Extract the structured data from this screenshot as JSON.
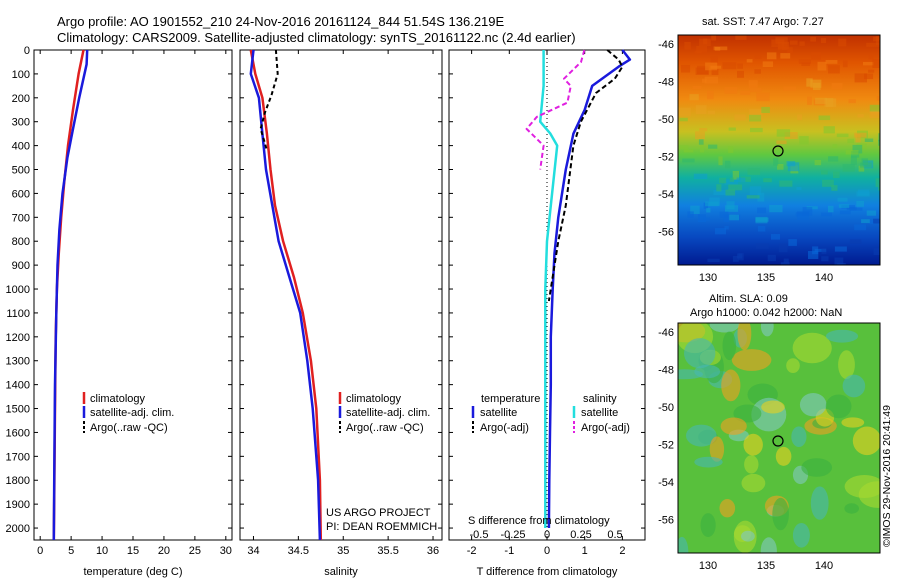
{
  "header": {
    "line1": "Argo profile: AO 1901552_210 24-Nov-2016 20161124_844 51.54S 136.219E",
    "line2": "Climatology: CARS2009. Satellite-adjusted climatology: synTS_20161122.nc (2.4d earlier)"
  },
  "colors": {
    "climatology": "#e02020",
    "satellite": "#1a1adc",
    "argo": "#000000",
    "salinity_satellite": "#22dede",
    "salinity_argo": "#e020e0"
  },
  "chart_data": [
    {
      "type": "line",
      "panel": "temperature",
      "xlabel": "temperature (deg C)",
      "ylim": [
        2050,
        0
      ],
      "xlim": [
        -1,
        31
      ],
      "xticks": [
        "0",
        "5",
        "10",
        "15",
        "20",
        "25",
        "30"
      ],
      "yticks": [
        "0",
        "100",
        "200",
        "300",
        "400",
        "500",
        "600",
        "700",
        "800",
        "900",
        "1000",
        "1100",
        "1200",
        "1300",
        "1400",
        "1500",
        "1600",
        "1700",
        "1800",
        "1900",
        "2000"
      ],
      "legend": [
        "climatology",
        "satellite-adj. clim.",
        "Argo(..raw -QC)"
      ],
      "series": [
        {
          "name": "climatology",
          "x": [
            7.0,
            6.2,
            5.3,
            4.5,
            3.9,
            3.4,
            3.0,
            2.7,
            2.5,
            2.4,
            2.3,
            2.2
          ],
          "y": [
            0,
            100,
            250,
            400,
            550,
            700,
            850,
            1000,
            1200,
            1500,
            1800,
            2050
          ]
        },
        {
          "name": "satellite-adj. clim.",
          "x": [
            7.6,
            7.5,
            6.3,
            5.3,
            4.4,
            3.6,
            3.1,
            2.8,
            2.6,
            2.4,
            2.3,
            2.2
          ],
          "y": [
            0,
            60,
            200,
            330,
            450,
            600,
            750,
            900,
            1100,
            1400,
            1700,
            2050
          ]
        }
      ]
    },
    {
      "type": "line",
      "panel": "salinity",
      "xlabel": "salinity",
      "ylim": [
        2050,
        0
      ],
      "xlim": [
        33.85,
        36.1
      ],
      "xticks": [
        "34",
        "34.5",
        "35",
        "35.5",
        "36"
      ],
      "legend": [
        "climatology",
        "satellite-adj. clim.",
        "Argo(..raw -QC)"
      ],
      "annotation": [
        "US ARGO PROJECT",
        "PI: DEAN ROEMMICH"
      ],
      "series": [
        {
          "name": "climatology",
          "x": [
            33.97,
            34.02,
            34.1,
            34.15,
            34.19,
            34.24,
            34.33,
            34.45,
            34.55,
            34.64,
            34.7,
            34.74,
            34.75
          ],
          "y": [
            0,
            100,
            200,
            350,
            500,
            650,
            800,
            950,
            1100,
            1300,
            1500,
            1800,
            2050
          ]
        },
        {
          "name": "satellite-adj. clim.",
          "x": [
            34.0,
            33.97,
            34.06,
            34.1,
            34.14,
            34.21,
            34.28,
            34.4,
            34.52,
            34.6,
            34.66,
            34.72,
            34.74
          ],
          "y": [
            0,
            100,
            200,
            350,
            500,
            650,
            800,
            950,
            1100,
            1300,
            1500,
            1800,
            2050
          ]
        },
        {
          "name": "Argo(..raw -QC)",
          "x": [
            34.25,
            34.27,
            34.2,
            34.13,
            34.08,
            34.12,
            34.15
          ],
          "y": [
            0,
            100,
            190,
            260,
            330,
            380,
            420
          ]
        }
      ]
    },
    {
      "type": "line",
      "panel": "difference",
      "xlabel": "T difference from climatology",
      "xlabel_top": "S difference from climatology",
      "ylim": [
        2050,
        0
      ],
      "xlim": [
        -2.6,
        2.6
      ],
      "xticks": [
        "-2",
        "-1",
        "0",
        "1",
        "2"
      ],
      "xticks_top": [
        "-0.5",
        "-0.25",
        "0",
        "0.25",
        "0.5"
      ],
      "legend_titles": [
        "temperature",
        "salinity"
      ],
      "legend": [
        "satellite",
        "Argo(-adj)",
        "satellite",
        "Argo(-adj)"
      ],
      "series": [
        {
          "name": "temperature satellite",
          "x": [
            2.0,
            2.2,
            1.9,
            1.2,
            1.0,
            0.7,
            0.5,
            0.3,
            0.2,
            0.15,
            0.1,
            0.1,
            0.08,
            0.06,
            0.05
          ],
          "y": [
            0,
            40,
            70,
            150,
            250,
            350,
            500,
            700,
            850,
            1000,
            1200,
            1400,
            1600,
            1800,
            2000
          ]
        },
        {
          "name": "temperature Argo(-adj)",
          "x": [
            1.6,
            1.9,
            2.0,
            1.8,
            1.3,
            0.9,
            0.7,
            0.5,
            0.3,
            0.05
          ],
          "y": [
            0,
            40,
            70,
            120,
            180,
            300,
            400,
            650,
            800,
            1050
          ]
        },
        {
          "name": "salinity satellite",
          "x": [
            -0.1,
            -0.1,
            -0.1,
            -0.2,
            0.1,
            0.3,
            0.15,
            0.0,
            -0.05,
            -0.05,
            -0.05,
            -0.05
          ],
          "y": [
            0,
            50,
            150,
            300,
            350,
            400,
            600,
            800,
            1000,
            1300,
            1600,
            2000
          ]
        },
        {
          "name": "salinity Argo(-adj)",
          "x": [
            1.1,
            1.0,
            0.5,
            0.7,
            0.6,
            -0.3,
            -0.6,
            -0.1,
            -0.2
          ],
          "y": [
            0,
            50,
            120,
            150,
            220,
            280,
            330,
            400,
            500
          ]
        }
      ]
    },
    {
      "type": "heatmap",
      "panel": "sst_map",
      "title": "sat. SST: 7.47 Argo: 7.27",
      "xticks": [
        "130",
        "135",
        "140"
      ],
      "yticks": [
        "-46",
        "-48",
        "-50",
        "-52",
        "-54",
        "-56"
      ]
    },
    {
      "type": "heatmap",
      "panel": "sla_map",
      "title_lines": [
        "Altim. SLA: 0.09",
        "Argo h1000: 0.042 h2000: NaN"
      ],
      "xticks": [
        "130",
        "135",
        "140"
      ],
      "yticks": [
        "-46",
        "-48",
        "-50",
        "-52",
        "-54",
        "-56"
      ]
    }
  ],
  "watermark": "©IMOS 29-Nov-2016 20:41:49"
}
